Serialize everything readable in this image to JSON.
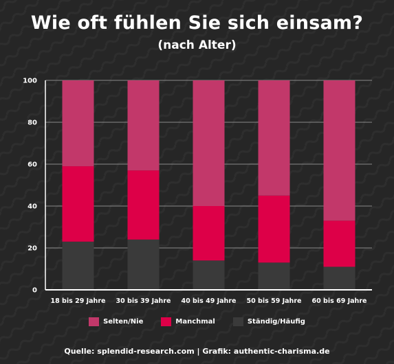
{
  "chart_data": {
    "type": "bar",
    "stacked": true,
    "title": "Wie oft fühlen Sie sich einsam?",
    "subtitle": "(nach Alter)",
    "categories": [
      "18 bis 29 Jahre",
      "30 bis 39 Jahre",
      "40 bis 49 Jahre",
      "50 bis 59 Jahre",
      "60 bis 69 Jahre"
    ],
    "series": [
      {
        "name": "Ständig/Häufig",
        "color": "#3a3a3a",
        "values": [
          23,
          24,
          14,
          13,
          11
        ]
      },
      {
        "name": "Manchmal",
        "color": "#dd0048",
        "values": [
          36,
          33,
          26,
          32,
          22
        ]
      },
      {
        "name": "Selten/Nie",
        "color": "#c2386a",
        "values": [
          41,
          43,
          60,
          55,
          67
        ]
      }
    ],
    "legend_order": [
      "Selten/Nie",
      "Manchmal",
      "Ständig/Häufig"
    ],
    "yticks": [
      0,
      20,
      40,
      60,
      80,
      100
    ],
    "ylim": [
      0,
      100
    ],
    "grid": true,
    "legend_position": "bottom"
  },
  "footer": {
    "source": "Quelle: splendid-research.com | Grafik: authentic-charisma.de"
  }
}
